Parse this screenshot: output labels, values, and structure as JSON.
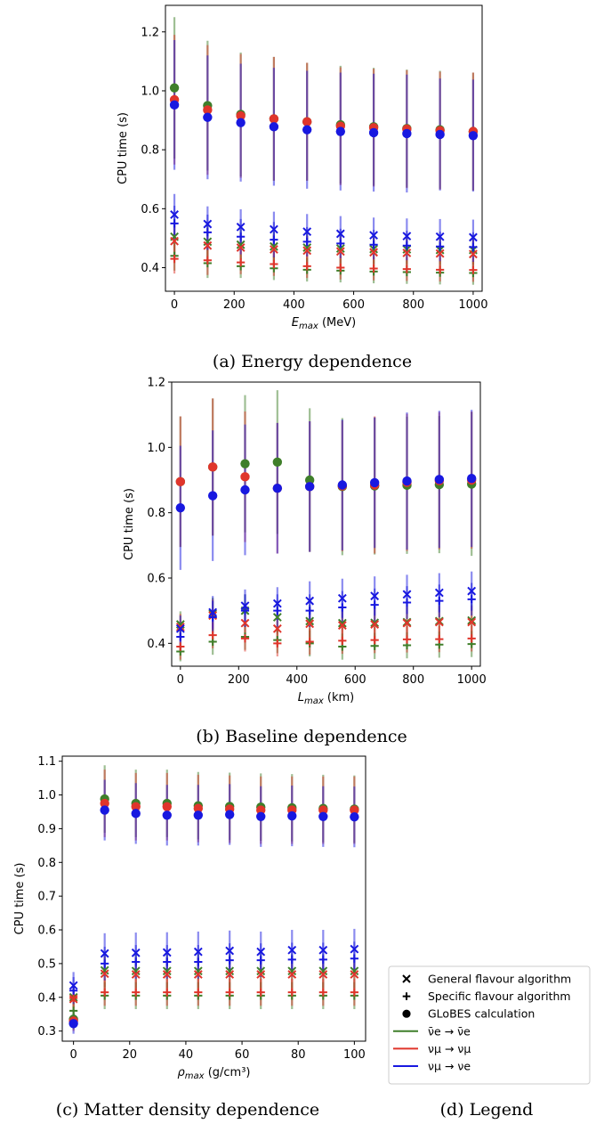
{
  "colors": {
    "green": "#3f7f2a",
    "red": "#e0352b",
    "blue": "#1818e0"
  },
  "legend": {
    "caption": "(d) Legend",
    "entries": [
      {
        "marker": "x",
        "label": "General flavour algorithm"
      },
      {
        "marker": "+",
        "label": "Specific flavour algorithm"
      },
      {
        "marker": "o",
        "label": "GLoBES calculation"
      },
      {
        "line": "green",
        "label": "ν̄e → ν̄e"
      },
      {
        "line": "red",
        "label": "νμ → νμ"
      },
      {
        "line": "blue",
        "label": "νμ → νe"
      }
    ]
  },
  "chart_data": [
    {
      "type": "scatter",
      "caption": "(a) Energy dependence",
      "xlabel": "E_max (MeV)",
      "ylabel": "CPU time (s)",
      "xlim": [
        -30,
        1030
      ],
      "ylim": [
        0.32,
        1.29
      ],
      "xticks": [
        0,
        200,
        400,
        600,
        800,
        1000
      ],
      "yticks": [
        0.4,
        0.6,
        0.8,
        1.0,
        1.2
      ],
      "x": [
        0,
        111,
        222,
        333,
        444,
        556,
        667,
        778,
        889,
        1000
      ],
      "series": [
        {
          "color": "green",
          "marker": "o",
          "values": [
            1.01,
            0.95,
            0.92,
            0.905,
            0.895,
            0.885,
            0.878,
            0.872,
            0.868,
            0.862
          ],
          "err": [
            0.24,
            0.22,
            0.21,
            0.21,
            0.2,
            0.2,
            0.2,
            0.2,
            0.2,
            0.2
          ]
        },
        {
          "color": "red",
          "marker": "o",
          "values": [
            0.97,
            0.935,
            0.915,
            0.905,
            0.895,
            0.88,
            0.875,
            0.87,
            0.865,
            0.862
          ],
          "err": [
            0.22,
            0.22,
            0.21,
            0.21,
            0.2,
            0.2,
            0.2,
            0.2,
            0.2,
            0.2
          ]
        },
        {
          "color": "blue",
          "marker": "o",
          "values": [
            0.952,
            0.91,
            0.892,
            0.878,
            0.868,
            0.862,
            0.858,
            0.855,
            0.852,
            0.848
          ],
          "err": [
            0.22,
            0.21,
            0.2,
            0.2,
            0.2,
            0.2,
            0.2,
            0.2,
            0.19,
            0.19
          ]
        },
        {
          "color": "green",
          "marker": "x",
          "values": [
            0.505,
            0.488,
            0.478,
            0.472,
            0.468,
            0.465,
            0.463,
            0.462,
            0.46,
            0.46
          ],
          "err": [
            0.06,
            0.06,
            0.05,
            0.05,
            0.05,
            0.05,
            0.05,
            0.05,
            0.05,
            0.05
          ]
        },
        {
          "color": "red",
          "marker": "x",
          "values": [
            0.49,
            0.475,
            0.468,
            0.462,
            0.458,
            0.455,
            0.452,
            0.45,
            0.448,
            0.446
          ],
          "err": [
            0.06,
            0.06,
            0.05,
            0.05,
            0.05,
            0.05,
            0.05,
            0.05,
            0.05,
            0.05
          ]
        },
        {
          "color": "blue",
          "marker": "x",
          "values": [
            0.58,
            0.548,
            0.538,
            0.53,
            0.522,
            0.515,
            0.51,
            0.507,
            0.505,
            0.503
          ],
          "err": [
            0.07,
            0.06,
            0.06,
            0.06,
            0.06,
            0.06,
            0.06,
            0.06,
            0.06,
            0.06
          ]
        },
        {
          "color": "green",
          "marker": "+",
          "values": [
            0.44,
            0.415,
            0.405,
            0.398,
            0.393,
            0.39,
            0.387,
            0.385,
            0.383,
            0.382
          ],
          "err": [
            0.05,
            0.05,
            0.04,
            0.04,
            0.04,
            0.04,
            0.04,
            0.04,
            0.04,
            0.04
          ]
        },
        {
          "color": "red",
          "marker": "+",
          "values": [
            0.43,
            0.425,
            0.418,
            0.412,
            0.405,
            0.4,
            0.397,
            0.395,
            0.393,
            0.392
          ],
          "err": [
            0.05,
            0.05,
            0.04,
            0.04,
            0.04,
            0.04,
            0.04,
            0.04,
            0.04,
            0.04
          ]
        },
        {
          "color": "blue",
          "marker": "+",
          "values": [
            0.55,
            0.52,
            0.505,
            0.495,
            0.488,
            0.482,
            0.478,
            0.475,
            0.472,
            0.47
          ],
          "err": [
            0.06,
            0.06,
            0.06,
            0.06,
            0.05,
            0.05,
            0.05,
            0.05,
            0.05,
            0.05
          ]
        }
      ]
    },
    {
      "type": "scatter",
      "caption": "(b) Baseline dependence",
      "xlabel": "L_max (km)",
      "ylabel": "CPU time (s)",
      "xlim": [
        -30,
        1030
      ],
      "ylim": [
        0.33,
        1.2
      ],
      "xticks": [
        0,
        200,
        400,
        600,
        800,
        1000
      ],
      "yticks": [
        0.4,
        0.6,
        0.8,
        1.0,
        1.2
      ],
      "x": [
        0,
        111,
        222,
        333,
        444,
        556,
        667,
        778,
        889,
        1000
      ],
      "series": [
        {
          "color": "green",
          "marker": "o",
          "values": [
            0.895,
            0.94,
            0.95,
            0.955,
            0.9,
            0.88,
            0.882,
            0.884,
            0.886,
            0.888
          ],
          "err": [
            0.2,
            0.21,
            0.21,
            0.22,
            0.22,
            0.21,
            0.21,
            0.21,
            0.21,
            0.22
          ]
        },
        {
          "color": "red",
          "marker": "o",
          "values": [
            0.895,
            0.94,
            0.91,
            0.875,
            0.88,
            0.882,
            0.885,
            0.893,
            0.898,
            0.9
          ],
          "err": [
            0.2,
            0.21,
            0.2,
            0.2,
            0.2,
            0.2,
            0.21,
            0.21,
            0.21,
            0.21
          ]
        },
        {
          "color": "blue",
          "marker": "o",
          "values": [
            0.815,
            0.852,
            0.87,
            0.875,
            0.88,
            0.885,
            0.892,
            0.897,
            0.902,
            0.905
          ],
          "err": [
            0.19,
            0.2,
            0.2,
            0.2,
            0.2,
            0.2,
            0.2,
            0.21,
            0.21,
            0.21
          ]
        },
        {
          "color": "green",
          "marker": "x",
          "values": [
            0.458,
            0.49,
            0.5,
            0.48,
            0.468,
            0.462,
            0.463,
            0.465,
            0.468,
            0.47
          ],
          "err": [
            0.04,
            0.05,
            0.05,
            0.05,
            0.05,
            0.05,
            0.05,
            0.05,
            0.05,
            0.05
          ]
        },
        {
          "color": "red",
          "marker": "x",
          "values": [
            0.45,
            0.485,
            0.462,
            0.445,
            0.46,
            0.455,
            0.458,
            0.462,
            0.465,
            0.465
          ],
          "err": [
            0.04,
            0.05,
            0.05,
            0.05,
            0.05,
            0.05,
            0.05,
            0.05,
            0.05,
            0.05
          ]
        },
        {
          "color": "blue",
          "marker": "x",
          "values": [
            0.445,
            0.495,
            0.515,
            0.522,
            0.53,
            0.538,
            0.545,
            0.55,
            0.555,
            0.56
          ],
          "err": [
            0.04,
            0.05,
            0.05,
            0.05,
            0.06,
            0.06,
            0.06,
            0.06,
            0.06,
            0.06
          ]
        },
        {
          "color": "green",
          "marker": "+",
          "values": [
            0.375,
            0.405,
            0.42,
            0.41,
            0.4,
            0.39,
            0.392,
            0.394,
            0.396,
            0.398
          ],
          "err": [
            0.03,
            0.04,
            0.04,
            0.04,
            0.04,
            0.04,
            0.04,
            0.04,
            0.04,
            0.04
          ]
        },
        {
          "color": "red",
          "marker": "+",
          "values": [
            0.39,
            0.425,
            0.415,
            0.4,
            0.405,
            0.408,
            0.41,
            0.412,
            0.413,
            0.415
          ],
          "err": [
            0.04,
            0.04,
            0.04,
            0.04,
            0.04,
            0.04,
            0.04,
            0.04,
            0.04,
            0.04
          ]
        },
        {
          "color": "blue",
          "marker": "+",
          "values": [
            0.42,
            0.48,
            0.5,
            0.5,
            0.5,
            0.51,
            0.518,
            0.525,
            0.53,
            0.535
          ],
          "err": [
            0.04,
            0.05,
            0.05,
            0.05,
            0.05,
            0.05,
            0.05,
            0.05,
            0.05,
            0.05
          ]
        }
      ]
    },
    {
      "type": "scatter",
      "caption": "(c) Matter density dependence",
      "xlabel": "ρ_max (g/cm³)",
      "ylabel": "CPU time (s)",
      "xlim": [
        -4,
        104
      ],
      "ylim": [
        0.27,
        1.115
      ],
      "xticks": [
        0,
        20,
        40,
        60,
        80,
        100
      ],
      "yticks": [
        0.3,
        0.4,
        0.5,
        0.6,
        0.7,
        0.8,
        0.9,
        1.0,
        1.1
      ],
      "x": [
        0,
        11.1,
        22.2,
        33.3,
        44.4,
        55.6,
        66.7,
        77.8,
        88.9,
        100
      ],
      "series": [
        {
          "color": "green",
          "marker": "o",
          "values": [
            0.335,
            0.988,
            0.975,
            0.975,
            0.968,
            0.966,
            0.964,
            0.962,
            0.96,
            0.958
          ],
          "err": [
            0.03,
            0.1,
            0.1,
            0.1,
            0.1,
            0.1,
            0.1,
            0.1,
            0.1,
            0.1
          ]
        },
        {
          "color": "red",
          "marker": "o",
          "values": [
            0.33,
            0.975,
            0.965,
            0.965,
            0.96,
            0.958,
            0.955,
            0.955,
            0.955,
            0.955
          ],
          "err": [
            0.03,
            0.1,
            0.1,
            0.1,
            0.1,
            0.1,
            0.1,
            0.1,
            0.1,
            0.1
          ]
        },
        {
          "color": "blue",
          "marker": "o",
          "values": [
            0.322,
            0.955,
            0.945,
            0.94,
            0.94,
            0.942,
            0.936,
            0.938,
            0.936,
            0.935
          ],
          "err": [
            0.03,
            0.09,
            0.09,
            0.09,
            0.09,
            0.09,
            0.09,
            0.09,
            0.09,
            0.09
          ]
        },
        {
          "color": "green",
          "marker": "x",
          "values": [
            0.4,
            0.48,
            0.478,
            0.478,
            0.478,
            0.478,
            0.478,
            0.478,
            0.478,
            0.478
          ],
          "err": [
            0.03,
            0.05,
            0.05,
            0.05,
            0.05,
            0.05,
            0.05,
            0.05,
            0.05,
            0.05
          ]
        },
        {
          "color": "red",
          "marker": "x",
          "values": [
            0.395,
            0.47,
            0.468,
            0.468,
            0.468,
            0.468,
            0.468,
            0.468,
            0.468,
            0.468
          ],
          "err": [
            0.03,
            0.05,
            0.05,
            0.05,
            0.05,
            0.05,
            0.05,
            0.05,
            0.05,
            0.05
          ]
        },
        {
          "color": "blue",
          "marker": "x",
          "values": [
            0.435,
            0.53,
            0.532,
            0.533,
            0.535,
            0.538,
            0.535,
            0.54,
            0.54,
            0.543
          ],
          "err": [
            0.04,
            0.06,
            0.06,
            0.06,
            0.06,
            0.06,
            0.06,
            0.06,
            0.06,
            0.06
          ]
        },
        {
          "color": "green",
          "marker": "+",
          "values": [
            0.36,
            0.405,
            0.405,
            0.405,
            0.405,
            0.405,
            0.405,
            0.405,
            0.405,
            0.405
          ],
          "err": [
            0.03,
            0.04,
            0.04,
            0.04,
            0.04,
            0.04,
            0.04,
            0.04,
            0.04,
            0.04
          ]
        },
        {
          "color": "red",
          "marker": "+",
          "values": [
            0.398,
            0.415,
            0.415,
            0.415,
            0.415,
            0.415,
            0.415,
            0.415,
            0.415,
            0.415
          ],
          "err": [
            0.03,
            0.04,
            0.04,
            0.04,
            0.04,
            0.04,
            0.04,
            0.04,
            0.04,
            0.04
          ]
        },
        {
          "color": "blue",
          "marker": "+",
          "values": [
            0.42,
            0.5,
            0.505,
            0.505,
            0.505,
            0.51,
            0.51,
            0.512,
            0.512,
            0.515
          ],
          "err": [
            0.04,
            0.05,
            0.05,
            0.05,
            0.05,
            0.05,
            0.05,
            0.05,
            0.05,
            0.05
          ]
        }
      ]
    }
  ]
}
